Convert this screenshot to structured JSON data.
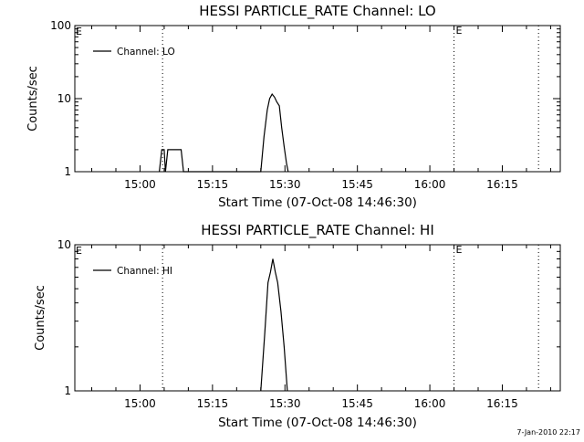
{
  "footer": {
    "timestamp": "7-Jan-2010 22:17"
  },
  "chart_data": [
    {
      "type": "line",
      "title": "HESSI PARTICLE_RATE Channel: LO",
      "xlabel": "Start Time (07-Oct-08 14:46:30)",
      "ylabel": "Counts/sec",
      "xlim": [
        "14:46:30",
        "16:27:00"
      ],
      "ylim": [
        1,
        100
      ],
      "yscale": "log",
      "x_ticks": [
        "15:00",
        "15:15",
        "15:30",
        "15:45",
        "16:00",
        "16:15"
      ],
      "y_ticks": [
        "1",
        "10",
        "100"
      ],
      "legend": {
        "position": "top-left",
        "entries": [
          "Channel: LO"
        ]
      },
      "markers": [
        {
          "time": "15:04:40",
          "flag": ""
        },
        {
          "time": "16:05:00",
          "flag": "E"
        },
        {
          "time": "16:22:30",
          "flag": ""
        }
      ],
      "left_flag": "E",
      "series": [
        {
          "name": "Channel: LO",
          "x": [
            "15:04:00",
            "15:04:30",
            "15:05:00",
            "15:05:15",
            "15:05:45",
            "15:07:00",
            "15:08:30",
            "15:09:00",
            "15:09:30",
            "15:25:00",
            "15:25:40",
            "15:26:20",
            "15:26:50",
            "15:27:20",
            "15:27:50",
            "15:28:20",
            "15:28:50",
            "15:29:20",
            "15:29:50",
            "15:30:20",
            "15:30:40"
          ],
          "y": [
            1,
            2,
            2,
            1,
            2,
            2,
            2,
            1,
            1,
            1,
            3,
            7,
            10,
            11.5,
            10.5,
            9,
            8,
            4,
            2.2,
            1.3,
            1
          ]
        }
      ]
    },
    {
      "type": "line",
      "title": "HESSI PARTICLE_RATE Channel: HI",
      "xlabel": "Start Time (07-Oct-08 14:46:30)",
      "ylabel": "Counts/sec",
      "xlim": [
        "14:46:30",
        "16:27:00"
      ],
      "ylim": [
        1,
        10
      ],
      "yscale": "log",
      "x_ticks": [
        "15:00",
        "15:15",
        "15:30",
        "15:45",
        "16:00",
        "16:15"
      ],
      "y_ticks": [
        "1",
        "10"
      ],
      "legend": {
        "position": "top-left",
        "entries": [
          "Channel: HI"
        ]
      },
      "markers": [
        {
          "time": "15:04:40",
          "flag": ""
        },
        {
          "time": "16:05:00",
          "flag": "E"
        },
        {
          "time": "16:22:30",
          "flag": ""
        }
      ],
      "left_flag": "E",
      "series": [
        {
          "name": "Channel: HI",
          "x": [
            "15:25:00",
            "15:25:50",
            "15:26:30",
            "15:27:00",
            "15:27:30",
            "15:28:00",
            "15:28:30",
            "15:29:10",
            "15:29:50",
            "15:30:30"
          ],
          "y": [
            1,
            2.5,
            5.5,
            6.5,
            8,
            6.5,
            5.5,
            3.5,
            2,
            1
          ]
        }
      ]
    }
  ]
}
